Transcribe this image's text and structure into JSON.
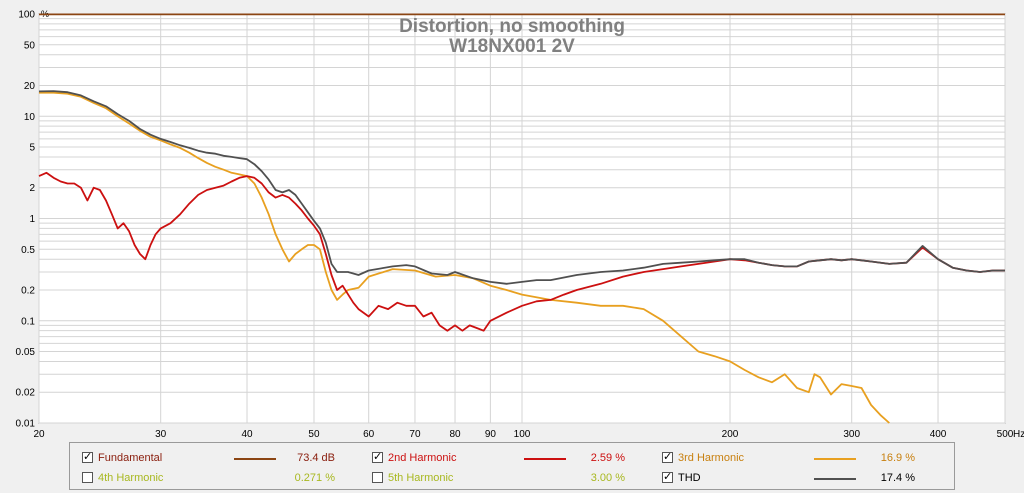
{
  "chart_data": {
    "type": "line",
    "title": "Distortion, no smoothing",
    "subtitle": "W18NX001 2V",
    "x_scale": "log",
    "y_scale": "log",
    "xlim": [
      20,
      500
    ],
    "ylim": [
      0.01,
      100
    ],
    "x_unit": "Hz",
    "x_ticks": [
      {
        "value": 20,
        "label": "20"
      },
      {
        "value": 30,
        "label": "30"
      },
      {
        "value": 40,
        "label": "40"
      },
      {
        "value": 50,
        "label": "50"
      },
      {
        "value": 60,
        "label": "60"
      },
      {
        "value": 70,
        "label": "70"
      },
      {
        "value": 80,
        "label": "80"
      },
      {
        "value": 90,
        "label": "90"
      },
      {
        "value": 100,
        "label": "100"
      },
      {
        "value": 200,
        "label": "200"
      },
      {
        "value": 300,
        "label": "300"
      },
      {
        "value": 400,
        "label": "400"
      },
      {
        "value": 500,
        "label": "500"
      }
    ],
    "y_ticks": [
      {
        "value": 100,
        "label": "100"
      },
      {
        "value": 50,
        "label": "50"
      },
      {
        "value": 20,
        "label": "20"
      },
      {
        "value": 10,
        "label": "10"
      },
      {
        "value": 5,
        "label": "5"
      },
      {
        "value": 2,
        "label": "2"
      },
      {
        "value": 1,
        "label": "1"
      },
      {
        "value": 0.5,
        "label": "0.5"
      },
      {
        "value": 0.2,
        "label": "0.2"
      },
      {
        "value": 0.1,
        "label": "0.1"
      },
      {
        "value": 0.05,
        "label": "0.05"
      },
      {
        "value": 0.02,
        "label": "0.02"
      },
      {
        "value": 0.01,
        "label": "0.01"
      }
    ],
    "y_unit_label": "%",
    "grid": true,
    "legend_position": "bottom",
    "series": [
      {
        "name": "Fundamental",
        "value": "73.4 dB",
        "checked": true,
        "color": "#8b4513",
        "points": [
          [
            20,
            99
          ],
          [
            500,
            99
          ]
        ]
      },
      {
        "name": "THD",
        "value": "17.4 %",
        "checked": true,
        "color": "#505050",
        "points": [
          [
            20,
            17.5
          ],
          [
            21,
            17.6
          ],
          [
            22,
            17.2
          ],
          [
            23,
            16
          ],
          [
            24,
            14
          ],
          [
            25,
            12.5
          ],
          [
            26,
            10.5
          ],
          [
            27,
            9
          ],
          [
            28,
            7.5
          ],
          [
            29,
            6.6
          ],
          [
            30,
            6
          ],
          [
            31,
            5.6
          ],
          [
            32,
            5.2
          ],
          [
            33,
            4.9
          ],
          [
            34,
            4.6
          ],
          [
            35,
            4.4
          ],
          [
            36,
            4.3
          ],
          [
            37,
            4.1
          ],
          [
            38,
            4
          ],
          [
            39,
            3.9
          ],
          [
            40,
            3.8
          ],
          [
            41,
            3.4
          ],
          [
            42,
            2.9
          ],
          [
            43,
            2.4
          ],
          [
            44,
            1.9
          ],
          [
            45,
            1.8
          ],
          [
            46,
            1.9
          ],
          [
            47,
            1.7
          ],
          [
            48,
            1.4
          ],
          [
            49,
            1.15
          ],
          [
            50,
            0.95
          ],
          [
            51,
            0.8
          ],
          [
            52,
            0.58
          ],
          [
            53,
            0.36
          ],
          [
            54,
            0.3
          ],
          [
            56,
            0.3
          ],
          [
            58,
            0.28
          ],
          [
            60,
            0.31
          ],
          [
            65,
            0.34
          ],
          [
            68,
            0.35
          ],
          [
            70,
            0.34
          ],
          [
            74,
            0.29
          ],
          [
            78,
            0.28
          ],
          [
            80,
            0.3
          ],
          [
            85,
            0.26
          ],
          [
            90,
            0.24
          ],
          [
            95,
            0.23
          ],
          [
            100,
            0.24
          ],
          [
            105,
            0.25
          ],
          [
            110,
            0.25
          ],
          [
            120,
            0.28
          ],
          [
            130,
            0.3
          ],
          [
            140,
            0.31
          ],
          [
            150,
            0.33
          ],
          [
            160,
            0.36
          ],
          [
            170,
            0.37
          ],
          [
            180,
            0.38
          ],
          [
            190,
            0.39
          ],
          [
            200,
            0.4
          ],
          [
            210,
            0.4
          ],
          [
            220,
            0.37
          ],
          [
            230,
            0.35
          ],
          [
            240,
            0.34
          ],
          [
            250,
            0.34
          ],
          [
            260,
            0.38
          ],
          [
            270,
            0.39
          ],
          [
            280,
            0.4
          ],
          [
            290,
            0.39
          ],
          [
            300,
            0.4
          ],
          [
            320,
            0.38
          ],
          [
            340,
            0.36
          ],
          [
            360,
            0.37
          ],
          [
            380,
            0.54
          ],
          [
            400,
            0.4
          ],
          [
            420,
            0.33
          ],
          [
            440,
            0.31
          ],
          [
            460,
            0.3
          ],
          [
            480,
            0.31
          ],
          [
            500,
            0.31
          ]
        ]
      },
      {
        "name": "2nd Harmonic",
        "value": "2.59 %",
        "checked": true,
        "color": "#cc1010",
        "points": [
          [
            20,
            2.6
          ],
          [
            20.5,
            2.8
          ],
          [
            21,
            2.5
          ],
          [
            21.5,
            2.3
          ],
          [
            22,
            2.2
          ],
          [
            22.5,
            2.2
          ],
          [
            23,
            2.0
          ],
          [
            23.5,
            1.5
          ],
          [
            24,
            2.0
          ],
          [
            24.5,
            1.9
          ],
          [
            25,
            1.5
          ],
          [
            25.5,
            1.1
          ],
          [
            26,
            0.8
          ],
          [
            26.5,
            0.9
          ],
          [
            27,
            0.75
          ],
          [
            27.5,
            0.55
          ],
          [
            28,
            0.45
          ],
          [
            28.5,
            0.4
          ],
          [
            29,
            0.55
          ],
          [
            29.5,
            0.7
          ],
          [
            30,
            0.8
          ],
          [
            31,
            0.9
          ],
          [
            32,
            1.1
          ],
          [
            33,
            1.4
          ],
          [
            34,
            1.7
          ],
          [
            35,
            1.9
          ],
          [
            36,
            2.0
          ],
          [
            37,
            2.1
          ],
          [
            38,
            2.3
          ],
          [
            39,
            2.5
          ],
          [
            40,
            2.6
          ],
          [
            41,
            2.5
          ],
          [
            42,
            2.2
          ],
          [
            43,
            1.8
          ],
          [
            44,
            1.6
          ],
          [
            45,
            1.7
          ],
          [
            46,
            1.6
          ],
          [
            47,
            1.4
          ],
          [
            48,
            1.2
          ],
          [
            49,
            1.0
          ],
          [
            50,
            0.85
          ],
          [
            51,
            0.7
          ],
          [
            52,
            0.45
          ],
          [
            53,
            0.28
          ],
          [
            54,
            0.2
          ],
          [
            55,
            0.22
          ],
          [
            57,
            0.15
          ],
          [
            58,
            0.13
          ],
          [
            60,
            0.11
          ],
          [
            62,
            0.14
          ],
          [
            64,
            0.13
          ],
          [
            66,
            0.15
          ],
          [
            68,
            0.14
          ],
          [
            70,
            0.14
          ],
          [
            72,
            0.11
          ],
          [
            74,
            0.12
          ],
          [
            76,
            0.09
          ],
          [
            78,
            0.08
          ],
          [
            80,
            0.09
          ],
          [
            82,
            0.08
          ],
          [
            84,
            0.09
          ],
          [
            86,
            0.085
          ],
          [
            88,
            0.08
          ],
          [
            90,
            0.1
          ],
          [
            95,
            0.12
          ],
          [
            100,
            0.14
          ],
          [
            105,
            0.155
          ],
          [
            110,
            0.16
          ],
          [
            115,
            0.18
          ],
          [
            120,
            0.2
          ],
          [
            130,
            0.23
          ],
          [
            140,
            0.27
          ],
          [
            150,
            0.3
          ],
          [
            160,
            0.32
          ],
          [
            170,
            0.34
          ],
          [
            180,
            0.36
          ],
          [
            190,
            0.38
          ],
          [
            200,
            0.4
          ],
          [
            210,
            0.39
          ],
          [
            220,
            0.37
          ],
          [
            230,
            0.35
          ],
          [
            240,
            0.34
          ],
          [
            250,
            0.34
          ],
          [
            260,
            0.38
          ],
          [
            270,
            0.39
          ],
          [
            280,
            0.4
          ],
          [
            290,
            0.39
          ],
          [
            300,
            0.4
          ],
          [
            320,
            0.38
          ],
          [
            340,
            0.36
          ],
          [
            360,
            0.37
          ],
          [
            380,
            0.52
          ],
          [
            400,
            0.4
          ],
          [
            420,
            0.33
          ],
          [
            440,
            0.31
          ],
          [
            460,
            0.3
          ],
          [
            480,
            0.31
          ],
          [
            500,
            0.31
          ]
        ]
      },
      {
        "name": "3rd Harmonic",
        "value": "16.9 %",
        "checked": true,
        "color": "#e8a020",
        "points": [
          [
            20,
            17
          ],
          [
            21,
            17
          ],
          [
            22,
            16.6
          ],
          [
            23,
            15.5
          ],
          [
            24,
            13.5
          ],
          [
            25,
            12
          ],
          [
            26,
            10
          ],
          [
            27,
            8.5
          ],
          [
            28,
            7.2
          ],
          [
            29,
            6.3
          ],
          [
            30,
            5.8
          ],
          [
            31,
            5.3
          ],
          [
            32,
            4.9
          ],
          [
            33,
            4.4
          ],
          [
            34,
            3.9
          ],
          [
            35,
            3.5
          ],
          [
            36,
            3.2
          ],
          [
            37,
            3
          ],
          [
            38,
            2.8
          ],
          [
            39,
            2.7
          ],
          [
            40,
            2.6
          ],
          [
            41,
            2.2
          ],
          [
            42,
            1.6
          ],
          [
            43,
            1.1
          ],
          [
            44,
            0.7
          ],
          [
            45,
            0.5
          ],
          [
            46,
            0.38
          ],
          [
            47,
            0.45
          ],
          [
            48,
            0.5
          ],
          [
            49,
            0.55
          ],
          [
            50,
            0.55
          ],
          [
            51,
            0.5
          ],
          [
            52,
            0.3
          ],
          [
            53,
            0.2
          ],
          [
            54,
            0.16
          ],
          [
            55,
            0.18
          ],
          [
            56,
            0.2
          ],
          [
            58,
            0.21
          ],
          [
            60,
            0.27
          ],
          [
            65,
            0.32
          ],
          [
            70,
            0.31
          ],
          [
            75,
            0.27
          ],
          [
            80,
            0.28
          ],
          [
            85,
            0.26
          ],
          [
            90,
            0.22
          ],
          [
            95,
            0.2
          ],
          [
            100,
            0.18
          ],
          [
            110,
            0.16
          ],
          [
            120,
            0.15
          ],
          [
            130,
            0.14
          ],
          [
            140,
            0.14
          ],
          [
            150,
            0.13
          ],
          [
            160,
            0.1
          ],
          [
            170,
            0.07
          ],
          [
            180,
            0.05
          ],
          [
            190,
            0.045
          ],
          [
            200,
            0.04
          ],
          [
            210,
            0.033
          ],
          [
            220,
            0.028
          ],
          [
            230,
            0.025
          ],
          [
            240,
            0.03
          ],
          [
            250,
            0.022
          ],
          [
            260,
            0.02
          ],
          [
            265,
            0.03
          ],
          [
            270,
            0.028
          ],
          [
            280,
            0.019
          ],
          [
            290,
            0.024
          ],
          [
            300,
            0.023
          ],
          [
            310,
            0.022
          ],
          [
            320,
            0.015
          ],
          [
            330,
            0.012
          ],
          [
            340,
            0.01
          ]
        ]
      },
      {
        "name": "4th Harmonic",
        "value": "0.271 %",
        "checked": false,
        "color": "#a8b820",
        "points": []
      },
      {
        "name": "5th Harmonic",
        "value": "3.00 %",
        "checked": false,
        "color": "#a8b820",
        "points": []
      }
    ]
  },
  "colors": {
    "plot_background": "#ffffff",
    "grid": "#d4d4d4",
    "title": "#808080",
    "legend_text_dark": "#000000",
    "legend_text_fund": "#8b2010",
    "legend_text_h2": "#cc1010",
    "legend_text_h3": "#c88010",
    "legend_text_h45": "#a8b820"
  }
}
